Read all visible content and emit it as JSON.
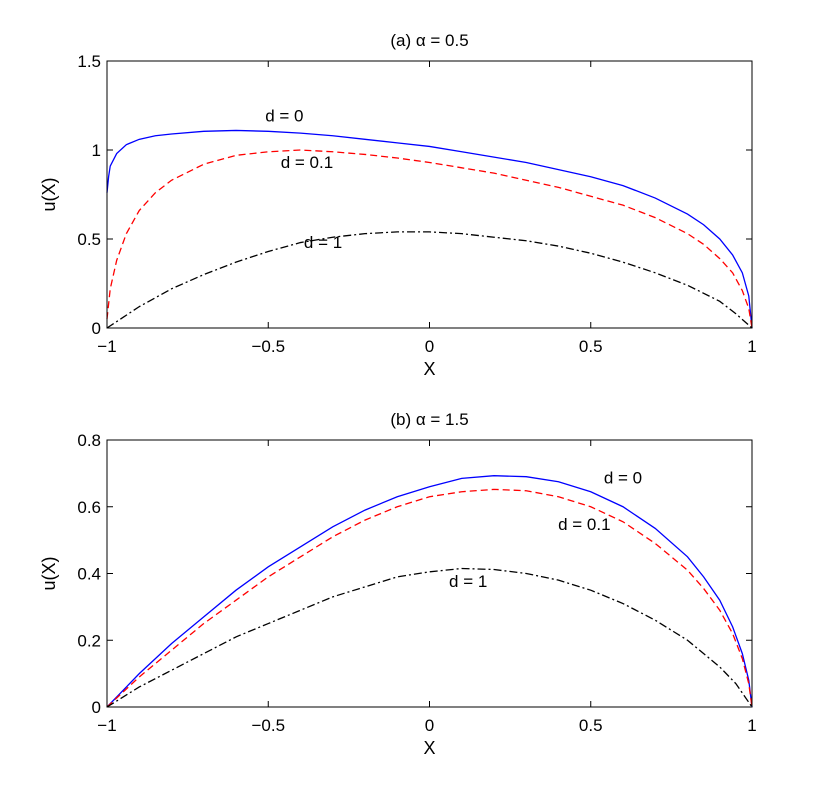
{
  "chart_data": [
    {
      "type": "line",
      "title": "(a) α = 0.5",
      "xlabel": "X",
      "ylabel": "u(X)",
      "xlim": [
        -1,
        1
      ],
      "ylim": [
        0,
        1.5
      ],
      "xticks": [
        -1,
        -0.5,
        0,
        0.5,
        1
      ],
      "xtick_labels": [
        "−1",
        "−0.5",
        "0",
        "0.5",
        "1"
      ],
      "yticks": [
        0,
        0.5,
        1,
        1.5
      ],
      "ytick_labels": [
        "0",
        "0.5",
        "1",
        "1.5"
      ],
      "grid": false,
      "series": [
        {
          "name": "d = 0",
          "style": "solid",
          "color": "#0000ff",
          "x": [
            -1.0,
            -0.995,
            -0.99,
            -0.97,
            -0.94,
            -0.9,
            -0.85,
            -0.8,
            -0.7,
            -0.6,
            -0.5,
            -0.4,
            -0.3,
            -0.2,
            -0.1,
            0.0,
            0.1,
            0.2,
            0.3,
            0.4,
            0.5,
            0.6,
            0.7,
            0.8,
            0.85,
            0.9,
            0.94,
            0.97,
            0.99,
            1.0
          ],
          "y": [
            0.76,
            0.85,
            0.91,
            0.98,
            1.03,
            1.06,
            1.08,
            1.09,
            1.105,
            1.11,
            1.105,
            1.095,
            1.08,
            1.06,
            1.04,
            1.02,
            0.99,
            0.96,
            0.93,
            0.89,
            0.85,
            0.8,
            0.73,
            0.64,
            0.58,
            0.5,
            0.41,
            0.31,
            0.18,
            0.0
          ]
        },
        {
          "name": "d = 0.1",
          "style": "dashed",
          "color": "#ff0000",
          "x": [
            -1.0,
            -0.99,
            -0.97,
            -0.94,
            -0.9,
            -0.85,
            -0.8,
            -0.7,
            -0.6,
            -0.5,
            -0.4,
            -0.3,
            -0.2,
            -0.1,
            0.0,
            0.1,
            0.2,
            0.3,
            0.4,
            0.5,
            0.6,
            0.7,
            0.8,
            0.85,
            0.9,
            0.94,
            0.97,
            0.99,
            1.0
          ],
          "y": [
            0.05,
            0.22,
            0.38,
            0.53,
            0.66,
            0.76,
            0.83,
            0.92,
            0.97,
            0.99,
            1.0,
            0.99,
            0.975,
            0.955,
            0.93,
            0.9,
            0.87,
            0.83,
            0.79,
            0.74,
            0.69,
            0.62,
            0.53,
            0.47,
            0.39,
            0.31,
            0.21,
            0.11,
            0.0
          ]
        },
        {
          "name": "d = 1",
          "style": "dashdot",
          "color": "#000000",
          "x": [
            -1.0,
            -0.95,
            -0.9,
            -0.8,
            -0.7,
            -0.6,
            -0.5,
            -0.4,
            -0.3,
            -0.2,
            -0.1,
            0.0,
            0.1,
            0.2,
            0.3,
            0.4,
            0.5,
            0.6,
            0.7,
            0.8,
            0.9,
            0.95,
            1.0
          ],
          "y": [
            0.0,
            0.06,
            0.12,
            0.22,
            0.3,
            0.37,
            0.43,
            0.48,
            0.51,
            0.53,
            0.54,
            0.54,
            0.53,
            0.51,
            0.49,
            0.46,
            0.42,
            0.37,
            0.31,
            0.24,
            0.15,
            0.08,
            0.0
          ]
        }
      ],
      "annotations": [
        {
          "text": "d = 0",
          "x": -0.45,
          "y": 1.16
        },
        {
          "text": "d = 0.1",
          "x": -0.38,
          "y": 0.9
        },
        {
          "text": "d = 1",
          "x": -0.33,
          "y": 0.45
        }
      ]
    },
    {
      "type": "line",
      "title": "(b) α = 1.5",
      "xlabel": "X",
      "ylabel": "u(X)",
      "xlim": [
        -1,
        1
      ],
      "ylim": [
        0,
        0.8
      ],
      "xticks": [
        -1,
        -0.5,
        0,
        0.5,
        1
      ],
      "xtick_labels": [
        "−1",
        "−0.5",
        "0",
        "0.5",
        "1"
      ],
      "yticks": [
        0,
        0.2,
        0.4,
        0.6,
        0.8
      ],
      "ytick_labels": [
        "0",
        "0.2",
        "0.4",
        "0.6",
        "0.8"
      ],
      "grid": false,
      "series": [
        {
          "name": "d = 0",
          "style": "solid",
          "color": "#0000ff",
          "x": [
            -1.0,
            -0.9,
            -0.8,
            -0.7,
            -0.6,
            -0.5,
            -0.4,
            -0.3,
            -0.2,
            -0.1,
            0.0,
            0.1,
            0.2,
            0.3,
            0.4,
            0.5,
            0.6,
            0.7,
            0.8,
            0.85,
            0.9,
            0.94,
            0.97,
            0.99,
            1.0
          ],
          "y": [
            0.0,
            0.1,
            0.19,
            0.27,
            0.35,
            0.42,
            0.48,
            0.54,
            0.59,
            0.63,
            0.66,
            0.685,
            0.693,
            0.69,
            0.675,
            0.645,
            0.6,
            0.535,
            0.45,
            0.39,
            0.32,
            0.24,
            0.16,
            0.08,
            0.0
          ]
        },
        {
          "name": "d = 0.1",
          "style": "dashed",
          "color": "#ff0000",
          "x": [
            -1.0,
            -0.9,
            -0.8,
            -0.7,
            -0.6,
            -0.5,
            -0.4,
            -0.3,
            -0.2,
            -0.1,
            0.0,
            0.1,
            0.2,
            0.3,
            0.4,
            0.5,
            0.6,
            0.7,
            0.8,
            0.85,
            0.9,
            0.94,
            0.97,
            0.99,
            1.0
          ],
          "y": [
            0.0,
            0.09,
            0.17,
            0.25,
            0.32,
            0.39,
            0.45,
            0.51,
            0.56,
            0.6,
            0.63,
            0.645,
            0.652,
            0.648,
            0.63,
            0.6,
            0.555,
            0.49,
            0.41,
            0.355,
            0.29,
            0.22,
            0.145,
            0.07,
            0.0
          ]
        },
        {
          "name": "d = 1",
          "style": "dashdot",
          "color": "#000000",
          "x": [
            -1.0,
            -0.9,
            -0.8,
            -0.7,
            -0.6,
            -0.5,
            -0.4,
            -0.3,
            -0.2,
            -0.1,
            0.0,
            0.1,
            0.2,
            0.3,
            0.4,
            0.5,
            0.6,
            0.7,
            0.8,
            0.9,
            0.95,
            1.0
          ],
          "y": [
            0.0,
            0.06,
            0.11,
            0.16,
            0.21,
            0.25,
            0.29,
            0.33,
            0.36,
            0.39,
            0.405,
            0.415,
            0.412,
            0.4,
            0.38,
            0.35,
            0.31,
            0.26,
            0.2,
            0.12,
            0.07,
            0.0
          ]
        }
      ],
      "annotations": [
        {
          "text": "d = 0",
          "x": 0.6,
          "y": 0.67
        },
        {
          "text": "d = 0.1",
          "x": 0.48,
          "y": 0.53
        },
        {
          "text": "d = 1",
          "x": 0.12,
          "y": 0.36
        }
      ]
    }
  ]
}
